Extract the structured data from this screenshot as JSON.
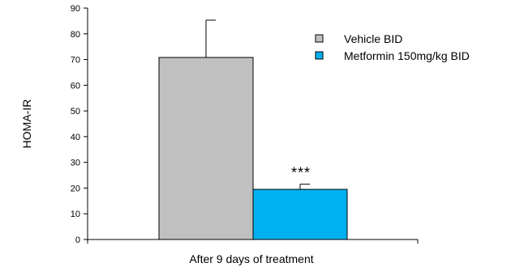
{
  "chart_data": {
    "type": "bar",
    "title": "",
    "xlabel": "After 9 days of treatment",
    "ylabel": "HOMA-IR",
    "ylim": [
      0,
      90
    ],
    "yticks": [
      0,
      10,
      20,
      30,
      40,
      50,
      60,
      70,
      80,
      90
    ],
    "grid": false,
    "legend_position": "top-right",
    "series": [
      {
        "name": "Vehicle BID",
        "value": 70.8,
        "error": 14.5,
        "color": "#C0C0C0"
      },
      {
        "name": "Metformin 150mg/kg BID",
        "value": 19.5,
        "error": 2.0,
        "color": "#00B0F0"
      }
    ],
    "annotations": [
      {
        "text": "***",
        "series_index": 1
      }
    ]
  }
}
